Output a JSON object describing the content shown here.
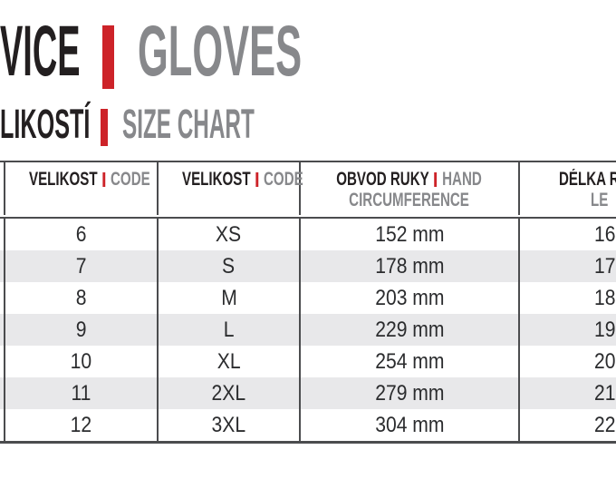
{
  "colors": {
    "accent_red": "#cd2329",
    "text_black": "#231f20",
    "text_gray": "#87888b",
    "stripe_gray": "#e8e8ea",
    "border_gray": "#4b4c4e"
  },
  "title_line1": {
    "text_cropped": "VICE",
    "separator": "|",
    "text_en": "GLOVES"
  },
  "title_line2": {
    "text_cropped": "LIKOSTÍ",
    "separator": "|",
    "text_en": "SIZE CHART"
  },
  "table": {
    "columns": [
      {
        "cz": "",
        "en": ""
      },
      {
        "cz": "VELIKOST",
        "en": "CODE"
      },
      {
        "cz": "VELIKOST",
        "en": "CODE"
      },
      {
        "cz": "OBVOD RUKY",
        "en": "HAND",
        "en_line2": "CIRCUMFERENCE"
      },
      {
        "cz_cropped": "DÉLKA R",
        "en_line2_cropped": "LE"
      }
    ],
    "rows": [
      {
        "size_cz": "6",
        "size_code": "XS",
        "hand_circumference": "152 mm",
        "length_cropped": "16"
      },
      {
        "size_cz": "7",
        "size_code": "S",
        "hand_circumference": "178 mm",
        "length_cropped": "17"
      },
      {
        "size_cz": "8",
        "size_code": "M",
        "hand_circumference": "203 mm",
        "length_cropped": "18"
      },
      {
        "size_cz": "9",
        "size_code": "L",
        "hand_circumference": "229 mm",
        "length_cropped": "19"
      },
      {
        "size_cz": "10",
        "size_code": "XL",
        "hand_circumference": "254 mm",
        "length_cropped": "20"
      },
      {
        "size_cz": "11",
        "size_code": "2XL",
        "hand_circumference": "279 mm",
        "length_cropped": "21"
      },
      {
        "size_cz": "12",
        "size_code": "3XL",
        "hand_circumference": "304 mm",
        "length_cropped": "22"
      }
    ]
  }
}
